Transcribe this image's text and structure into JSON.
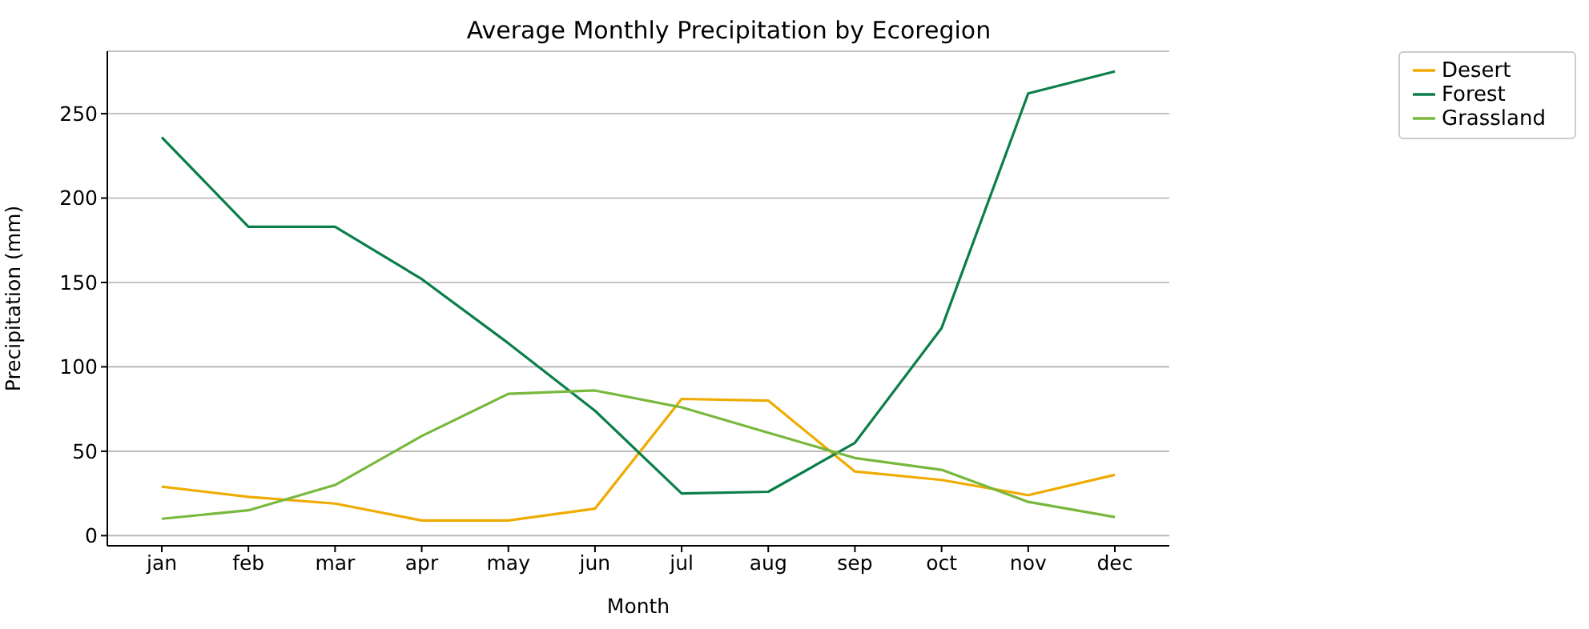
{
  "chart_data": {
    "type": "line",
    "title": "Average Monthly Precipitation by Ecoregion",
    "xlabel": "Month",
    "ylabel": "Precipitation (mm)",
    "categories": [
      "jan",
      "feb",
      "mar",
      "apr",
      "may",
      "jun",
      "jul",
      "aug",
      "sep",
      "oct",
      "nov",
      "dec"
    ],
    "series": [
      {
        "name": "Desert",
        "color": "#f0ab00",
        "values": [
          29,
          23,
          19,
          9,
          9,
          16,
          81,
          80,
          38,
          33,
          24,
          36
        ]
      },
      {
        "name": "Forest",
        "color": "#0b7f4a",
        "values": [
          236,
          183,
          183,
          152,
          114,
          74,
          25,
          26,
          55,
          123,
          262,
          275
        ]
      },
      {
        "name": "Grassland",
        "color": "#78b83c",
        "values": [
          10,
          15,
          30,
          59,
          84,
          86,
          76,
          61,
          46,
          39,
          20,
          11
        ]
      }
    ],
    "ylim": [
      -6,
      287
    ],
    "yticks": [
      0,
      50,
      100,
      150,
      200,
      250
    ],
    "grid": "y",
    "legend": "top right",
    "marker": "none",
    "line_style": "solid"
  }
}
